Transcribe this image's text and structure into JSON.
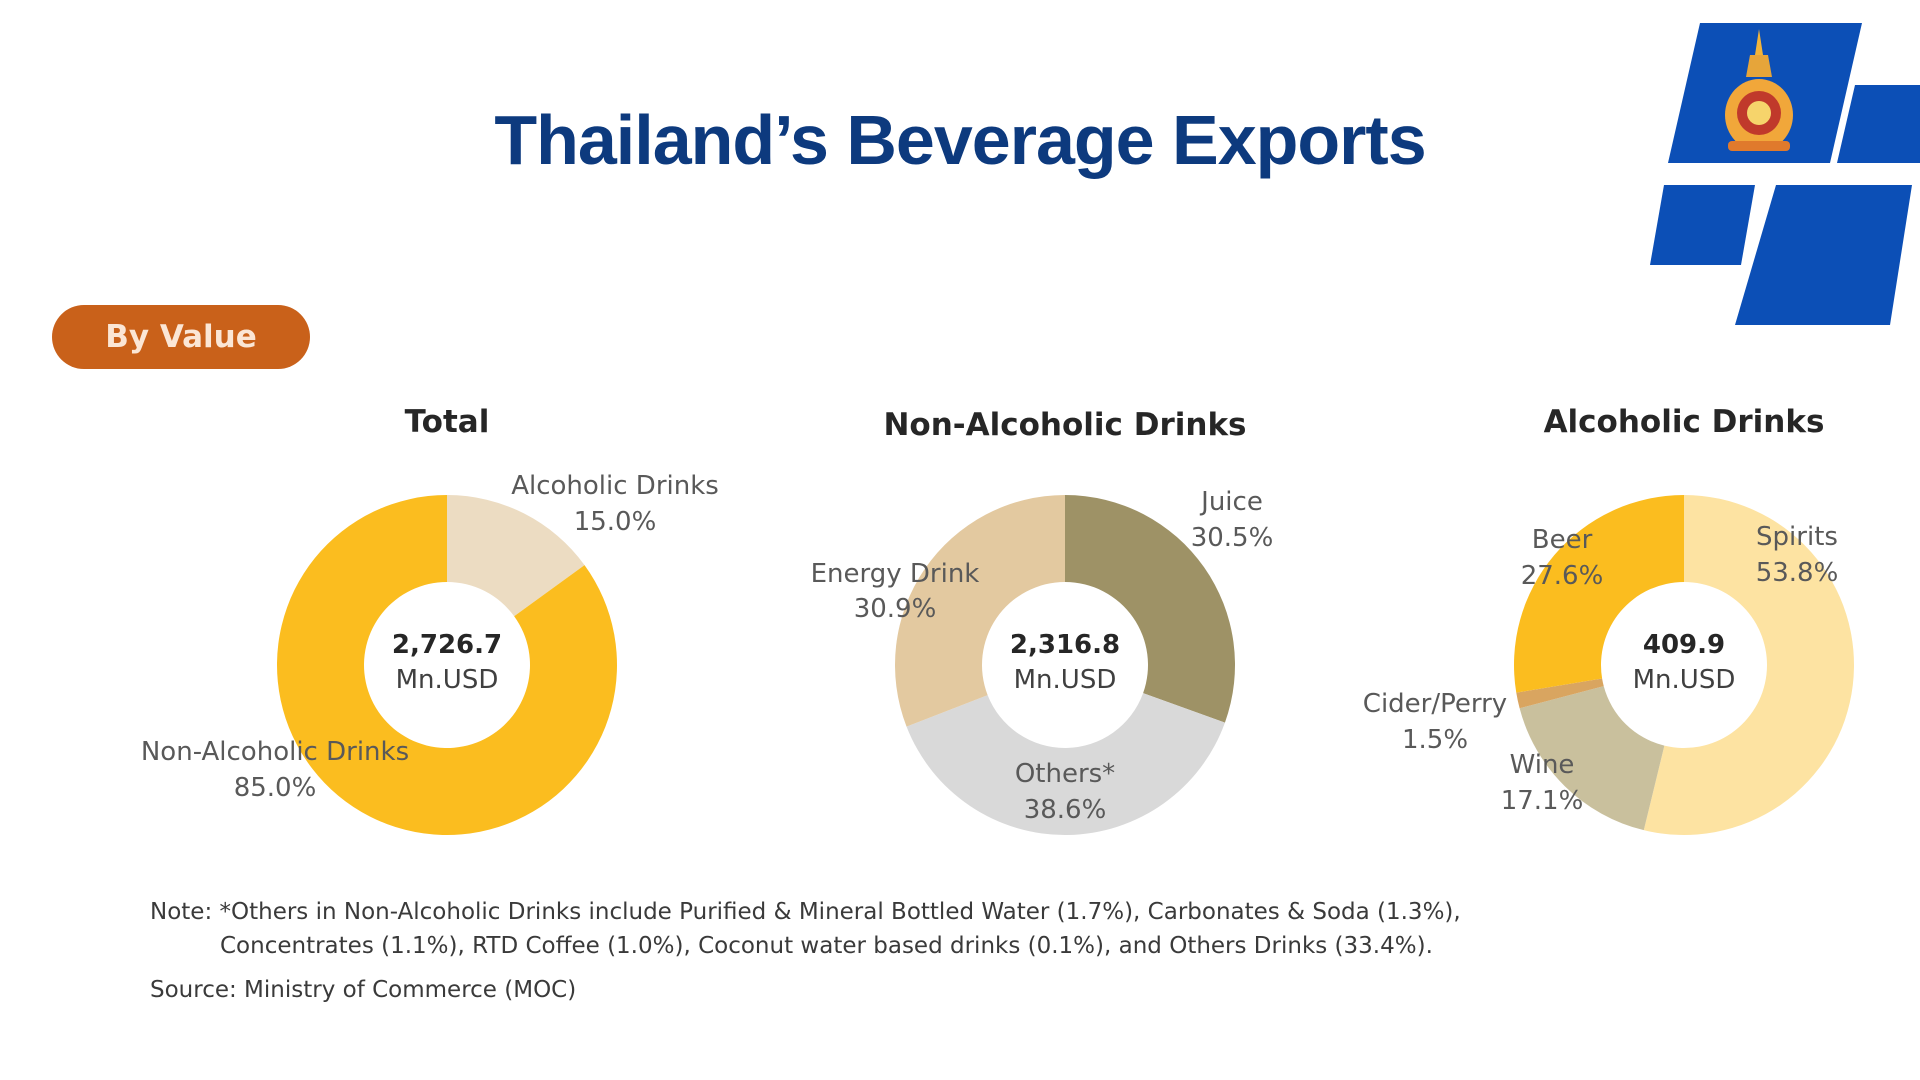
{
  "slide": {
    "title": "Thailand’s Beverage Exports",
    "badge": "By Value",
    "note_line1": "Note: *Others in Non-Alcoholic Drinks include Purified & Mineral Bottled Water (1.7%), Carbonates & Soda (1.3%),",
    "note_line2": "Concentrates (1.1%), RTD Coffee  (1.0%), Coconut water based drinks (0.1%), and Others Drinks (33.4%).",
    "source": "Source: Ministry of Commerce (MOC)",
    "colors": {
      "title": "#0d3a7e",
      "badge": "#c9611a",
      "logo_blue": "#0c4fb6"
    }
  },
  "chart_data": [
    {
      "type": "pie",
      "title": "Total",
      "center_value": "2,726.7",
      "center_unit": "Mn.USD",
      "slices": [
        {
          "label": "Alcoholic  Drinks",
          "value": 15.0,
          "value_label": "15.0%",
          "color": "#ecdcc2"
        },
        {
          "label": "Non-Alcoholic  Drinks",
          "value": 85.0,
          "value_label": "85.0%",
          "color": "#fbbd1f"
        }
      ]
    },
    {
      "type": "pie",
      "title": "Non-Alcoholic Drinks",
      "center_value": "2,316.8",
      "center_unit": "Mn.USD",
      "slices": [
        {
          "label": "Juice",
          "value": 30.5,
          "value_label": "30.5%",
          "color": "#9e9266"
        },
        {
          "label": "Others*",
          "value": 38.6,
          "value_label": "38.6%",
          "color": "#d9d9d9"
        },
        {
          "label": "Energy Drink",
          "value": 30.9,
          "value_label": "30.9%",
          "color": "#e3c9a0"
        }
      ]
    },
    {
      "type": "pie",
      "title": "Alcoholic Drinks",
      "center_value": "409.9",
      "center_unit": "Mn.USD",
      "slices": [
        {
          "label": "Spirits",
          "value": 53.8,
          "value_label": "53.8%",
          "color": "#fde3a2"
        },
        {
          "label": "Wine",
          "value": 17.1,
          "value_label": "17.1%",
          "color": "#c9c09d"
        },
        {
          "label": "Cider/Perry",
          "value": 1.5,
          "value_label": "1.5%",
          "color": "#d9a560"
        },
        {
          "label": "Beer",
          "value": 27.6,
          "value_label": "27.6%",
          "color": "#fbbd1f"
        }
      ]
    }
  ]
}
